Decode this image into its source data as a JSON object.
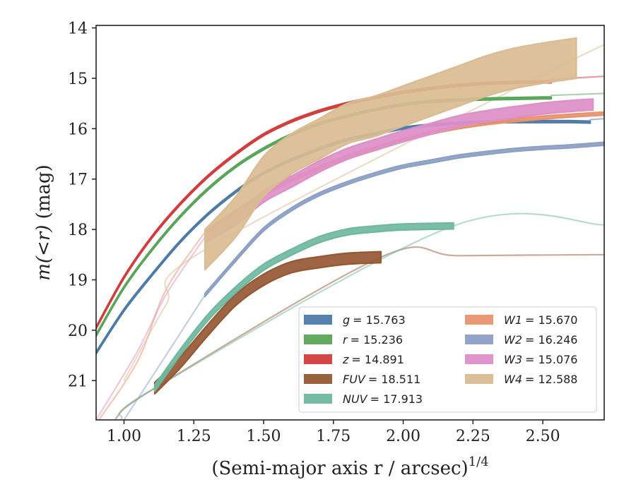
{
  "chart_data": {
    "type": "line",
    "xlabel": "(Semi-major axis r / arcsec)",
    "xlabel_sup": "1/4",
    "ylabel_prefix": "m(<r)",
    "ylabel_suffix": " (mag)",
    "xlim": [
      0.9,
      2.72
    ],
    "ylim": [
      21.78,
      13.95
    ],
    "y_inverted": true,
    "xticks": [
      "1.00",
      "1.25",
      "1.50",
      "1.75",
      "2.00",
      "2.25",
      "2.50"
    ],
    "yticks": [
      "14",
      "15",
      "16",
      "17",
      "18",
      "19",
      "20",
      "21"
    ],
    "grid": false,
    "legend_position": "lower-right",
    "legend_columns": 2,
    "series": [
      {
        "name": "g = 15.763",
        "legend_var": "g",
        "legend_val": "= 15.763",
        "color": "#4c7baa",
        "width": 0.04,
        "x": [
          0.9,
          1.0,
          1.1,
          1.2,
          1.3,
          1.4,
          1.5,
          1.6,
          1.7,
          1.8,
          1.9,
          2.0,
          2.1,
          2.2,
          2.3,
          2.4,
          2.5,
          2.6,
          2.67
        ],
        "y": [
          20.45,
          19.6,
          18.9,
          18.25,
          17.7,
          17.25,
          16.88,
          16.62,
          16.4,
          16.22,
          16.1,
          15.99,
          15.93,
          15.89,
          15.87,
          15.86,
          15.86,
          15.86,
          15.87
        ],
        "ext_x": [
          2.67,
          2.72
        ],
        "ext_y": [
          15.82,
          15.8
        ]
      },
      {
        "name": "r = 15.236",
        "legend_var": "r",
        "legend_val": "= 15.236",
        "color": "#5aa55a",
        "width": 0.04,
        "x": [
          0.9,
          1.0,
          1.1,
          1.2,
          1.3,
          1.4,
          1.5,
          1.6,
          1.7,
          1.8,
          1.9,
          2.0,
          2.1,
          2.2,
          2.3,
          2.4,
          2.5,
          2.53
        ],
        "y": [
          20.1,
          19.15,
          18.4,
          17.75,
          17.2,
          16.75,
          16.4,
          16.12,
          15.9,
          15.75,
          15.62,
          15.52,
          15.46,
          15.43,
          15.41,
          15.4,
          15.39,
          15.39
        ],
        "ext_x": [
          2.53,
          2.72
        ],
        "ext_y": [
          15.34,
          15.3
        ]
      },
      {
        "name": "z = 14.891",
        "legend_var": "z",
        "legend_val": "= 14.891",
        "color": "#d23c3c",
        "width": 0.04,
        "x": [
          0.9,
          1.0,
          1.1,
          1.2,
          1.3,
          1.4,
          1.5,
          1.6,
          1.7,
          1.8,
          1.9,
          2.0,
          2.1,
          2.2,
          2.3,
          2.4,
          2.53
        ],
        "y": [
          19.95,
          18.95,
          18.15,
          17.5,
          16.95,
          16.5,
          16.12,
          15.85,
          15.65,
          15.5,
          15.38,
          15.28,
          15.2,
          15.14,
          15.1,
          15.08,
          15.07
        ],
        "ext_x": [
          2.53,
          2.72
        ],
        "ext_y": [
          15.02,
          14.96
        ]
      },
      {
        "name": "FUV = 18.511",
        "legend_var": "FUV",
        "legend_val": "= 18.511",
        "color": "#955833",
        "width": 0.22,
        "x": [
          1.11,
          1.2,
          1.3,
          1.4,
          1.5,
          1.6,
          1.7,
          1.8,
          1.92
        ],
        "y": [
          21.15,
          20.65,
          20.0,
          19.4,
          19.0,
          18.75,
          18.65,
          18.58,
          18.55
        ],
        "ext_x": [
          0.97,
          1.11,
          1.92,
          2.2,
          2.72
        ],
        "ext_y": [
          21.75,
          21.15,
          18.55,
          18.52,
          18.5
        ]
      },
      {
        "name": "NUV = 17.913",
        "legend_var": "NUV",
        "legend_val": "= 17.913",
        "color": "#6fb8a0",
        "width": 0.12,
        "x": [
          1.11,
          1.2,
          1.3,
          1.4,
          1.5,
          1.6,
          1.7,
          1.8,
          1.9,
          2.0,
          2.18
        ],
        "y": [
          21.15,
          20.45,
          19.75,
          19.2,
          18.75,
          18.45,
          18.2,
          18.05,
          17.99,
          17.95,
          17.93
        ],
        "ext_x": [
          0.99,
          1.11,
          2.18,
          2.72
        ],
        "ext_y": [
          21.75,
          21.15,
          17.93,
          17.91
        ]
      },
      {
        "name": "W1 = 15.670",
        "legend_var": "W1",
        "legend_val": "= 15.670",
        "color": "#e8936e",
        "width": 0.06,
        "x": [
          1.29,
          1.4,
          1.5,
          1.6,
          1.7,
          1.8,
          1.9,
          2.0,
          2.1,
          2.2,
          2.3,
          2.4,
          2.5,
          2.6,
          2.72
        ],
        "y": [
          18.05,
          17.65,
          17.3,
          17.02,
          16.78,
          16.55,
          16.38,
          16.22,
          16.08,
          15.97,
          15.89,
          15.83,
          15.78,
          15.74,
          15.7
        ],
        "ext_x": [
          0.91,
          1.05,
          1.15,
          1.29
        ],
        "ext_y": [
          21.78,
          20.6,
          19.2,
          18.05
        ]
      },
      {
        "name": "W2 = 16.246",
        "legend_var": "W2",
        "legend_val": "= 16.246",
        "color": "#8c9fc5",
        "width": 0.06,
        "x": [
          1.29,
          1.4,
          1.5,
          1.6,
          1.7,
          1.8,
          1.9,
          2.0,
          2.1,
          2.2,
          2.3,
          2.4,
          2.5,
          2.6,
          2.72
        ],
        "y": [
          19.3,
          18.6,
          18.0,
          17.6,
          17.3,
          17.08,
          16.9,
          16.75,
          16.65,
          16.55,
          16.48,
          16.42,
          16.38,
          16.35,
          16.3
        ],
        "ext_x": [
          1.0,
          1.15,
          1.29
        ],
        "ext_y": [
          21.78,
          20.5,
          19.3
        ]
      },
      {
        "name": "W3 = 15.076",
        "legend_var": "W3",
        "legend_val": "= 15.076",
        "color": "#dd8fc8",
        "width": 0.22,
        "x": [
          1.29,
          1.4,
          1.5,
          1.6,
          1.7,
          1.8,
          1.9,
          2.0,
          2.1,
          2.2,
          2.3,
          2.4,
          2.5,
          2.6,
          2.68
        ],
        "y": [
          18.15,
          17.8,
          17.35,
          17.05,
          16.75,
          16.5,
          16.32,
          16.15,
          16.0,
          15.85,
          15.75,
          15.67,
          15.6,
          15.55,
          15.52
        ],
        "ext_x": [
          0.9,
          1.05,
          1.15,
          1.29
        ],
        "ext_y": [
          21.78,
          20.4,
          19.3,
          18.15
        ]
      },
      {
        "name": "W4 = 12.588",
        "legend_var": "W4",
        "legend_val": "= 12.588",
        "color": "#d9bc92",
        "width": 0.8,
        "x": [
          1.29,
          1.4,
          1.5,
          1.6,
          1.7,
          1.8,
          1.9,
          2.0,
          2.1,
          2.2,
          2.3,
          2.4,
          2.5,
          2.62
        ],
        "y": [
          18.4,
          17.75,
          16.95,
          16.5,
          16.2,
          15.9,
          15.75,
          15.55,
          15.35,
          15.15,
          14.95,
          14.8,
          14.7,
          14.6
        ],
        "ext_x": [
          1.0,
          1.15,
          1.29,
          2.62,
          2.72
        ],
        "ext_y": [
          21.0,
          19.5,
          18.4,
          14.6,
          14.45
        ]
      }
    ]
  }
}
